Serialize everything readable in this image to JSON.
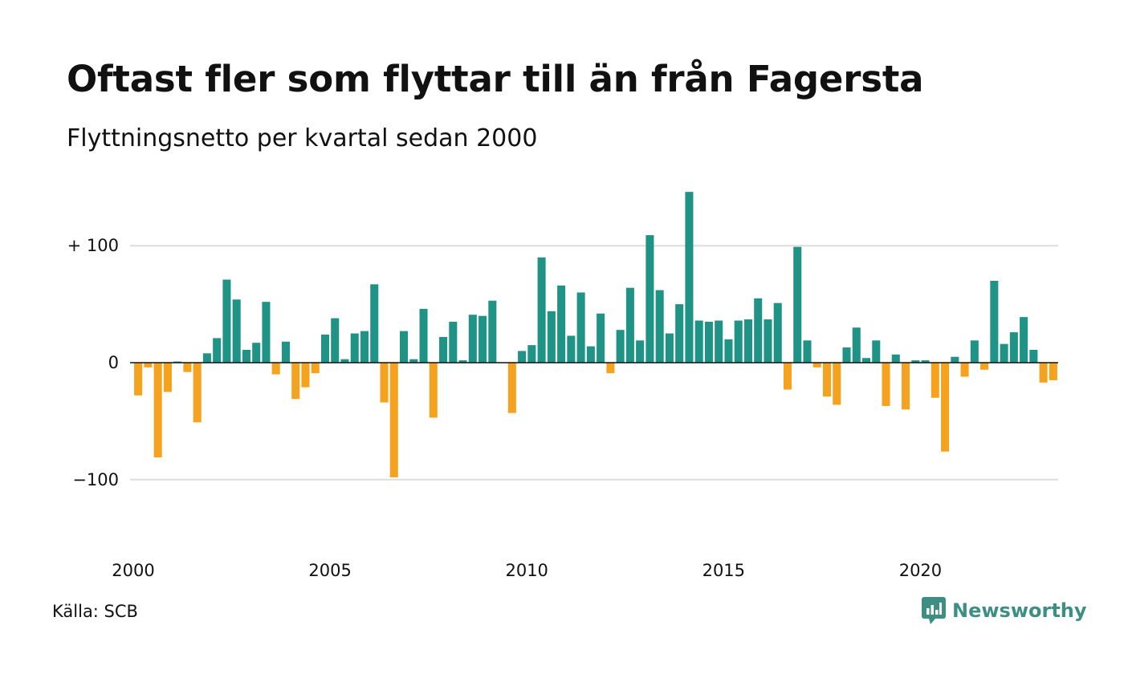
{
  "header": {
    "title": "Oftast fler som flyttar till än från Fagersta",
    "subtitle": "Flyttningsnetto per kvartal sedan 2000"
  },
  "footer": {
    "source": "Källa: SCB",
    "brand": "Newsworthy",
    "brand_icon": "newsworthy-logo-icon"
  },
  "colors": {
    "positive": "#1f9486",
    "negative": "#f5a21e",
    "grid": "#dddddd",
    "zero_line": "#111111",
    "brand": "#3e8f83"
  },
  "chart_data": {
    "type": "bar",
    "title": "Oftast fler som flyttar till än från Fagersta",
    "subtitle": "Flyttningsnetto per kvartal sedan 2000",
    "x_start": "2000 Q1",
    "x_interval": "quarter",
    "ylim": [
      -160,
      150
    ],
    "yticks": [
      {
        "value": 100,
        "label": "+ 100"
      },
      {
        "value": 0,
        "label": "0"
      },
      {
        "value": -100,
        "label": "−100"
      }
    ],
    "xticks": [
      "2000",
      "2005",
      "2010",
      "2015",
      "2020"
    ],
    "grid": true,
    "values": [
      -28,
      -4,
      -81,
      -25,
      1,
      -8,
      -51,
      8,
      21,
      71,
      54,
      11,
      17,
      52,
      -10,
      18,
      -31,
      -21,
      -9,
      24,
      38,
      3,
      25,
      27,
      67,
      -34,
      -98,
      27,
      3,
      46,
      -47,
      22,
      35,
      2,
      41,
      40,
      53,
      0,
      -43,
      10,
      15,
      90,
      44,
      66,
      23,
      60,
      14,
      42,
      -9,
      28,
      64,
      19,
      109,
      62,
      25,
      50,
      146,
      36,
      35,
      36,
      20,
      36,
      37,
      55,
      37,
      51,
      -23,
      99,
      19,
      -4,
      -29,
      -36,
      13,
      30,
      4,
      19,
      -37,
      7,
      -40,
      2,
      2,
      -30,
      -76,
      5,
      -12,
      19,
      -6,
      70,
      16,
      26,
      39,
      11,
      -17,
      -15
    ]
  }
}
